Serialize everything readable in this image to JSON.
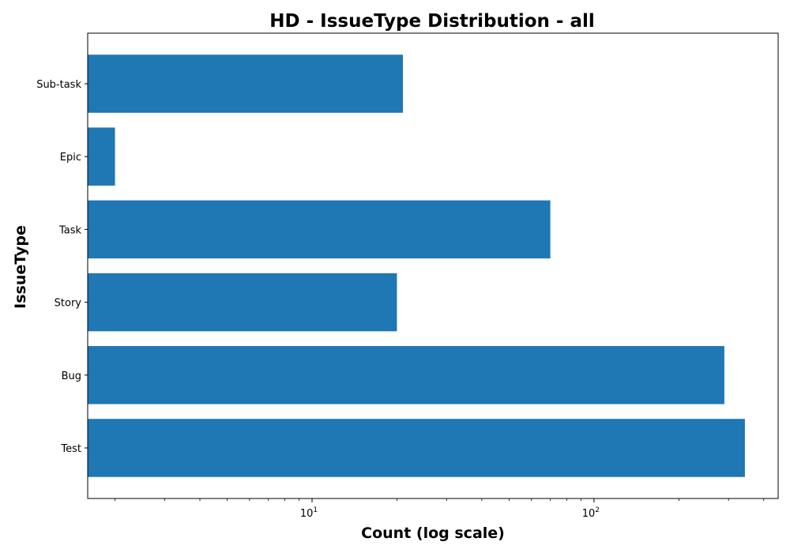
{
  "chart_data": {
    "type": "bar",
    "orientation": "horizontal",
    "title": "HD - IssueType Distribution - all",
    "xlabel": "Count (log scale)",
    "ylabel": "IssueType",
    "x_scale": "log",
    "xlim": [
      1.6,
      450
    ],
    "x_ticks": [
      {
        "value": 10,
        "base": "10",
        "exp": "1"
      },
      {
        "value": 100,
        "base": "10",
        "exp": "2"
      }
    ],
    "categories": [
      "Sub-task",
      "Epic",
      "Task",
      "Story",
      "Bug",
      "Test"
    ],
    "values": [
      21,
      2,
      70,
      20,
      290,
      343
    ],
    "bar_color": "#1f77b4",
    "grid": false,
    "legend": "none"
  }
}
